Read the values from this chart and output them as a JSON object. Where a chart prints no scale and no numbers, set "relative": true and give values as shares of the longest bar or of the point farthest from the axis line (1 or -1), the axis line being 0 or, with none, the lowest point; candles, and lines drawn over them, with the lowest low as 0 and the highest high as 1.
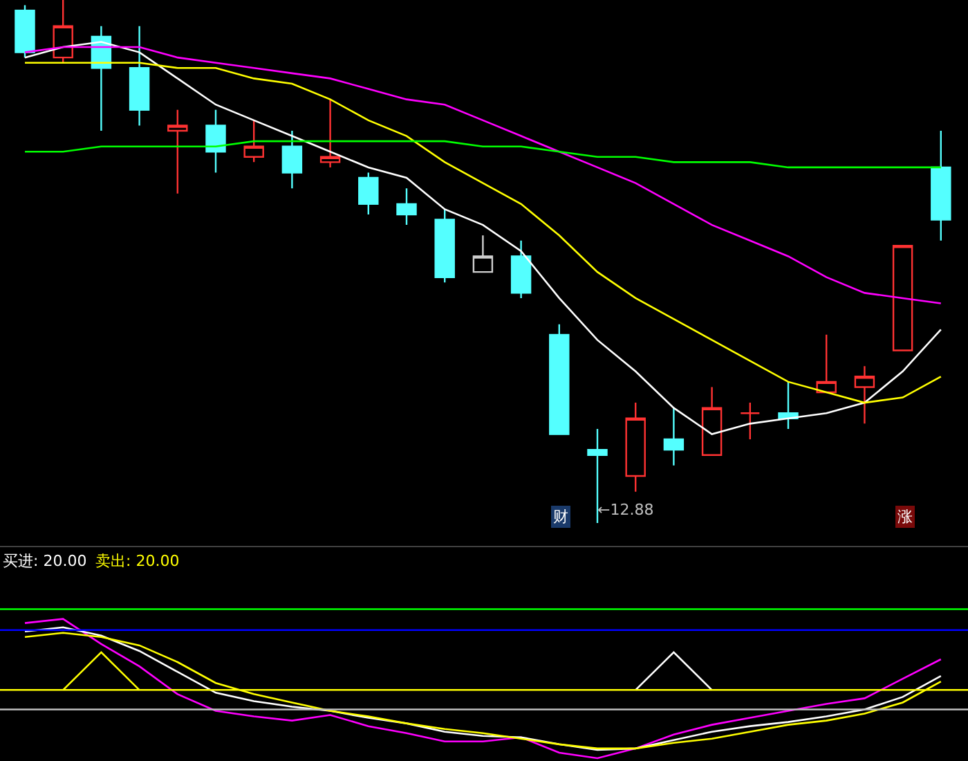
{
  "chart_data": [
    {
      "type": "candlestick",
      "relative": true,
      "categories": [
        null,
        null,
        null,
        null,
        null,
        null,
        null,
        null,
        null,
        null,
        null,
        null,
        null,
        null,
        null,
        null,
        null,
        null,
        null,
        null,
        null,
        null,
        null,
        null,
        null
      ],
      "ohlc": [
        [
          0.98,
          0.99,
          0.89,
          0.9
        ],
        [
          0.89,
          1,
          0.88,
          0.95
        ],
        [
          0.93,
          0.95,
          0.75,
          0.87
        ],
        [
          0.87,
          0.95,
          0.76,
          0.79
        ],
        [
          0.75,
          0.79,
          0.63,
          0.76
        ],
        [
          0.76,
          0.79,
          0.67,
          0.71
        ],
        [
          0.7,
          0.77,
          0.69,
          0.72
        ],
        [
          0.72,
          0.75,
          0.64,
          0.67
        ],
        [
          0.69,
          0.81,
          0.68,
          0.7
        ],
        [
          0.66,
          0.67,
          0.59,
          0.61
        ],
        [
          0.61,
          0.64,
          0.57,
          0.59
        ],
        [
          0.58,
          0.6,
          0.46,
          0.47
        ],
        [
          0.48,
          0.55,
          0.48,
          0.51
        ],
        [
          0.51,
          0.54,
          0.43,
          0.44
        ],
        [
          0.36,
          0.38,
          0.17,
          0.17
        ],
        [
          0.14,
          0.18,
          0,
          0.13
        ],
        [
          0.09,
          0.23,
          0.06,
          0.2
        ],
        [
          0.16,
          0.22,
          0.11,
          0.14
        ],
        [
          0.13,
          0.26,
          0.13,
          0.22
        ],
        [
          0.21,
          0.23,
          0.16,
          0.21
        ],
        [
          0.21,
          0.27,
          0.18,
          0.2
        ],
        [
          0.25,
          0.36,
          0.25,
          0.27
        ],
        [
          0.26,
          0.3,
          0.19,
          0.28
        ],
        [
          0.33,
          0.53,
          0.33,
          0.53
        ],
        [
          0.68,
          0.75,
          0.54,
          0.58
        ]
      ],
      "colors": [
        "#54ffff",
        "#ff3232",
        "#54ffff",
        "#54ffff",
        "#ff3232",
        "#54ffff",
        "#ff3232",
        "#54ffff",
        "#ff3232",
        "#54ffff",
        "#54ffff",
        "#54ffff",
        "#d0d0d0",
        "#54ffff",
        "#54ffff",
        "#54ffff",
        "#ff3232",
        "#54ffff",
        "#ff3232",
        "#ff3232",
        "#54ffff",
        "#ff3232",
        "#ff3232",
        "#ff3232",
        "#54ffff"
      ],
      "series": [
        {
          "type": "line",
          "color": "#ffffff",
          "values": [
            0.89,
            0.91,
            0.92,
            0.9,
            0.85,
            0.8,
            0.77,
            0.74,
            0.71,
            0.68,
            0.66,
            0.6,
            0.57,
            0.52,
            0.43,
            0.35,
            0.29,
            0.22,
            0.17,
            0.19,
            0.2,
            0.21,
            0.23,
            0.29,
            0.37
          ]
        },
        {
          "type": "line",
          "color": "#ffff00",
          "values": [
            0.88,
            0.88,
            0.88,
            0.88,
            0.87,
            0.87,
            0.85,
            0.84,
            0.81,
            0.77,
            0.74,
            0.69,
            0.65,
            0.61,
            0.55,
            0.48,
            0.43,
            0.39,
            0.35,
            0.31,
            0.27,
            0.25,
            0.23,
            0.24,
            0.28
          ]
        },
        {
          "type": "line",
          "color": "#ff00ff",
          "values": [
            0.9,
            0.91,
            0.91,
            0.91,
            0.89,
            0.88,
            0.87,
            0.86,
            0.85,
            0.83,
            0.81,
            0.8,
            0.77,
            0.74,
            0.71,
            0.68,
            0.65,
            0.61,
            0.57,
            0.54,
            0.51,
            0.47,
            0.44,
            0.43,
            0.42
          ]
        },
        {
          "type": "line",
          "color": "#00ff00",
          "values": [
            0.71,
            0.71,
            0.72,
            0.72,
            0.72,
            0.72,
            0.73,
            0.73,
            0.73,
            0.73,
            0.73,
            0.73,
            0.72,
            0.72,
            0.71,
            0.7,
            0.7,
            0.69,
            0.69,
            0.69,
            0.68,
            0.68,
            0.68,
            0.68,
            0.68
          ]
        }
      ],
      "annotations": [
        "←12.88",
        "财",
        "涨"
      ]
    },
    {
      "type": "line",
      "relative": true,
      "categories": [
        null,
        null,
        null,
        null,
        null,
        null,
        null,
        null,
        null,
        null,
        null,
        null,
        null,
        null,
        null,
        null,
        null,
        null,
        null,
        null,
        null,
        null,
        null,
        null,
        null
      ],
      "series": [
        {
          "color": "#ff00ff",
          "values": [
            0.97,
            1.0,
            0.82,
            0.66,
            0.46,
            0.34,
            0.3,
            0.27,
            0.31,
            0.23,
            0.18,
            0.12,
            0.12,
            0.15,
            0.04,
            0,
            0.07,
            0.17,
            0.24,
            0.29,
            0.34,
            0.39,
            0.43,
            0.57,
            0.71
          ]
        },
        {
          "color": "#ffffff",
          "values": [
            0.91,
            0.94,
            0.88,
            0.77,
            0.62,
            0.47,
            0.41,
            0.37,
            0.34,
            0.29,
            0.25,
            0.19,
            0.16,
            0.15,
            0.1,
            0.06,
            0.07,
            0.13,
            0.19,
            0.23,
            0.26,
            0.3,
            0.35,
            0.44,
            0.59
          ]
        },
        {
          "color": "#ffff00",
          "values": [
            0.87,
            0.9,
            0.87,
            0.81,
            0.69,
            0.54,
            0.46,
            0.4,
            0.34,
            0.3,
            0.25,
            0.21,
            0.18,
            0.14,
            0.1,
            0.07,
            0.07,
            0.11,
            0.14,
            0.19,
            0.24,
            0.27,
            0.32,
            0.4,
            0.55
          ]
        },
        {
          "color": "#ffff00",
          "values": [
            null,
            0.49,
            0.76,
            0.49,
            null,
            null,
            null,
            null,
            null,
            null,
            null,
            null,
            null,
            null,
            null,
            null,
            null,
            null,
            null,
            null,
            null,
            null,
            null,
            null,
            null
          ]
        },
        {
          "color": "#ffffff",
          "values": [
            null,
            null,
            null,
            null,
            null,
            null,
            null,
            null,
            null,
            null,
            null,
            null,
            null,
            null,
            null,
            null,
            0.49,
            0.76,
            0.49,
            null,
            null,
            null,
            null,
            null,
            null
          ]
        }
      ],
      "ref_lines": [
        {
          "axis": "y",
          "value": 1.07,
          "color": "#00ff00"
        },
        {
          "axis": "y",
          "value": 0.92,
          "color": "#0000ff"
        },
        {
          "axis": "y",
          "value": 0.49,
          "color": "#ffff00"
        },
        {
          "axis": "y",
          "value": 0.35,
          "color": "#c0c0c0"
        }
      ],
      "annotations": [
        "买进: 20.00",
        "卖出: 20.00"
      ]
    }
  ]
}
